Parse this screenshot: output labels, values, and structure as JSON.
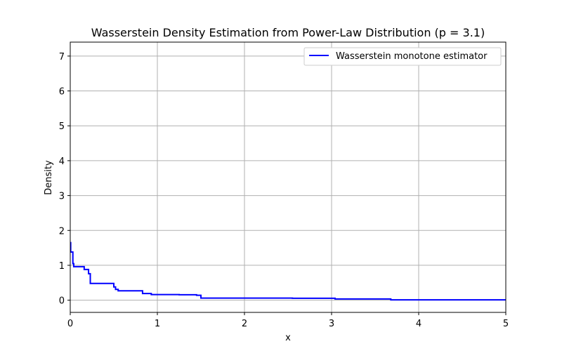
{
  "chart_data": {
    "type": "line",
    "title": "Wasserstein Density Estimation from Power-Law Distribution (p = 3.1)",
    "xlabel": "x",
    "ylabel": "Density",
    "xlim": [
      0,
      5
    ],
    "ylim": [
      -0.35,
      7.4
    ],
    "xticks": [
      0,
      1,
      2,
      3,
      4,
      5
    ],
    "xtick_labels": [
      "0",
      "1",
      "2",
      "3",
      "4",
      "5"
    ],
    "yticks": [
      0,
      1,
      2,
      3,
      4,
      5,
      6,
      7
    ],
    "ytick_labels": [
      "0",
      "1",
      "2",
      "3",
      "4",
      "5",
      "6",
      "7"
    ],
    "grid": true,
    "legend_position": "top-right",
    "step": "post",
    "series": [
      {
        "name": "Wasserstein monotone estimator",
        "color": "#0000ff",
        "x": [
          0.0,
          0.005,
          0.03,
          0.04,
          0.16,
          0.21,
          0.23,
          0.5,
          0.52,
          0.55,
          0.83,
          0.93,
          1.25,
          1.45,
          1.5,
          2.55,
          3.04,
          3.68,
          5.0
        ],
        "y": [
          1.65,
          1.38,
          1.05,
          0.96,
          0.88,
          0.76,
          0.48,
          0.38,
          0.31,
          0.27,
          0.19,
          0.16,
          0.155,
          0.14,
          0.06,
          0.055,
          0.035,
          0.01,
          0.01
        ]
      }
    ]
  }
}
